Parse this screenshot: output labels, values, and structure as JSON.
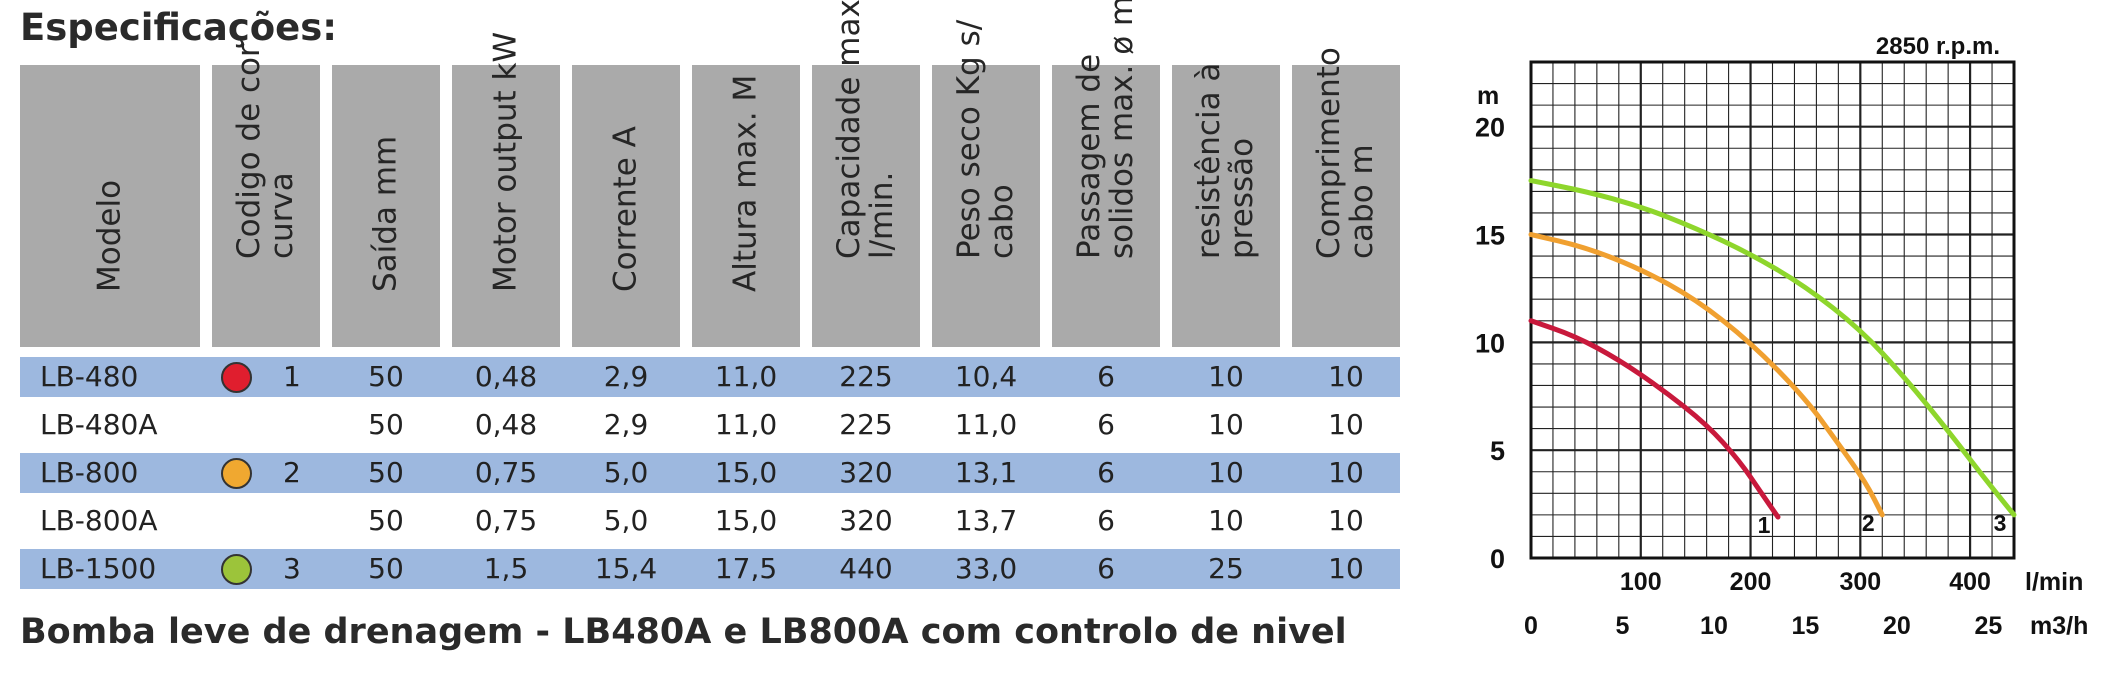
{
  "title": "Especificações:",
  "footer_title": "Bomba leve de drenagem - LB480A e LB800A com controlo de nivel",
  "table": {
    "headers": [
      {
        "key": "modelo",
        "lines": [
          "Modelo"
        ]
      },
      {
        "key": "cor",
        "lines": [
          "Codigo de cor",
          "curva"
        ]
      },
      {
        "key": "saida",
        "lines": [
          "Saída mm"
        ]
      },
      {
        "key": "motor",
        "lines": [
          "Motor output kW"
        ]
      },
      {
        "key": "corrente",
        "lines": [
          "Corrente A"
        ]
      },
      {
        "key": "altura",
        "lines": [
          "Altura max. M"
        ]
      },
      {
        "key": "capacidade",
        "lines": [
          "Capacidade max.",
          "l/min."
        ]
      },
      {
        "key": "peso",
        "lines": [
          "Peso seco Kg s/",
          "cabo"
        ]
      },
      {
        "key": "passagem",
        "lines": [
          "Passagem de",
          "solidos max. ø mm"
        ]
      },
      {
        "key": "resistencia",
        "lines": [
          "resistência à",
          "pressão"
        ]
      },
      {
        "key": "comprimento",
        "lines": [
          "Comprimento",
          "cabo m"
        ]
      }
    ],
    "rows": [
      {
        "modelo": "LB-480",
        "dot_color": "#e01e2e",
        "curve": "1",
        "saida": "50",
        "motor": "0,48",
        "corrente": "2,9",
        "altura": "11,0",
        "capacidade": "225",
        "peso": "10,4",
        "passagem": "6",
        "resistencia": "10",
        "comprimento": "10",
        "shaded": true
      },
      {
        "modelo": "LB-480A",
        "dot_color": "",
        "curve": "",
        "saida": "50",
        "motor": "0,48",
        "corrente": "2,9",
        "altura": "11,0",
        "capacidade": "225",
        "peso": "11,0",
        "passagem": "6",
        "resistencia": "10",
        "comprimento": "10",
        "shaded": false
      },
      {
        "modelo": "LB-800",
        "dot_color": "#f0a830",
        "curve": "2",
        "saida": "50",
        "motor": "0,75",
        "corrente": "5,0",
        "altura": "15,0",
        "capacidade": "320",
        "peso": "13,1",
        "passagem": "6",
        "resistencia": "10",
        "comprimento": "10",
        "shaded": true
      },
      {
        "modelo": "LB-800A",
        "dot_color": "",
        "curve": "",
        "saida": "50",
        "motor": "0,75",
        "corrente": "5,0",
        "altura": "15,0",
        "capacidade": "320",
        "peso": "13,7",
        "passagem": "6",
        "resistencia": "10",
        "comprimento": "10",
        "shaded": false
      },
      {
        "modelo": "LB-1500",
        "dot_color": "#9cc43a",
        "curve": "3",
        "saida": "50",
        "motor": "1,5",
        "corrente": "15,4",
        "altura": "17,5",
        "capacidade": "440",
        "peso": "33,0",
        "passagem": "6",
        "resistencia": "25",
        "comprimento": "10",
        "shaded": true
      }
    ]
  },
  "chart_data": {
    "type": "line",
    "title": "2850 r.p.m.",
    "ylabel": "m",
    "xlabel": "l/min",
    "x2label": "m3/h",
    "xlim": [
      0,
      440
    ],
    "ylim": [
      0,
      23
    ],
    "grid": true,
    "y_ticks": [
      "0",
      "5",
      "10",
      "15",
      "20"
    ],
    "x_ticks": [
      "100",
      "200",
      "300",
      "400"
    ],
    "x2_ticks": [
      "0",
      "5",
      "10",
      "15",
      "20",
      "25"
    ],
    "series": [
      {
        "name": "1",
        "color": "#c8193c",
        "x": [
          0,
          40,
          80,
          120,
          160,
          190,
          210,
          225
        ],
        "y": [
          11,
          10.3,
          9.2,
          7.8,
          6.2,
          4.5,
          3,
          1.9
        ]
      },
      {
        "name": "2",
        "color": "#f0a030",
        "x": [
          0,
          50,
          100,
          150,
          200,
          250,
          280,
          305,
          320
        ],
        "y": [
          15,
          14.4,
          13.4,
          12,
          10,
          7.4,
          5.3,
          3.5,
          2
        ]
      },
      {
        "name": "3",
        "color": "#8ed62c",
        "x": [
          0,
          50,
          100,
          150,
          200,
          250,
          300,
          340,
          380,
          410,
          440
        ],
        "y": [
          17.5,
          17,
          16.3,
          15.3,
          14.1,
          12.6,
          10.6,
          8.4,
          5.9,
          3.9,
          2
        ]
      }
    ]
  }
}
